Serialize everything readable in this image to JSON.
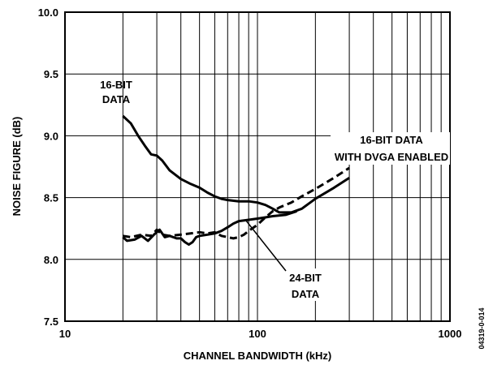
{
  "chart_data": {
    "type": "line",
    "x_scale": "log",
    "xlim": [
      10,
      1000
    ],
    "ylim": [
      7.5,
      10.0
    ],
    "grid": true,
    "xlabel": "CHANNEL BANDWIDTH (kHz)",
    "ylabel": "NOISE FIGURE (dB)",
    "x_ticks": [
      10,
      100,
      1000
    ],
    "x_tick_labels": [
      "10",
      "100",
      "1000"
    ],
    "y_ticks": [
      7.5,
      8.0,
      8.5,
      9.0,
      9.5,
      10.0
    ],
    "y_tick_labels": [
      "7.5",
      "8.0",
      "8.5",
      "9.0",
      "9.5",
      "10.0"
    ],
    "figure_id": "04319-0-014",
    "series": [
      {
        "name": "16-BIT DATA",
        "style": "solid",
        "points": [
          [
            20,
            9.16
          ],
          [
            22,
            9.1
          ],
          [
            24,
            9.0
          ],
          [
            26,
            8.92
          ],
          [
            28,
            8.85
          ],
          [
            30,
            8.84
          ],
          [
            32,
            8.8
          ],
          [
            35,
            8.72
          ],
          [
            40,
            8.65
          ],
          [
            45,
            8.61
          ],
          [
            50,
            8.58
          ],
          [
            55,
            8.54
          ],
          [
            60,
            8.51
          ],
          [
            65,
            8.49
          ],
          [
            70,
            8.48
          ],
          [
            80,
            8.47
          ],
          [
            90,
            8.47
          ],
          [
            100,
            8.46
          ],
          [
            110,
            8.44
          ],
          [
            120,
            8.41
          ],
          [
            130,
            8.38
          ],
          [
            150,
            8.38
          ],
          [
            170,
            8.41
          ],
          [
            200,
            8.49
          ],
          [
            250,
            8.58
          ],
          [
            300,
            8.66
          ]
        ]
      },
      {
        "name": "16-BIT DATA WITH DVGA ENABLED",
        "style": "dashed",
        "points": [
          [
            20,
            8.19
          ],
          [
            22,
            8.18
          ],
          [
            25,
            8.2
          ],
          [
            28,
            8.19
          ],
          [
            30,
            8.24
          ],
          [
            32,
            8.2
          ],
          [
            35,
            8.19
          ],
          [
            40,
            8.2
          ],
          [
            45,
            8.21
          ],
          [
            50,
            8.22
          ],
          [
            55,
            8.21
          ],
          [
            60,
            8.22
          ],
          [
            65,
            8.19
          ],
          [
            70,
            8.18
          ],
          [
            75,
            8.17
          ],
          [
            80,
            8.18
          ],
          [
            85,
            8.2
          ],
          [
            90,
            8.23
          ],
          [
            100,
            8.28
          ],
          [
            110,
            8.34
          ],
          [
            120,
            8.39
          ],
          [
            130,
            8.42
          ],
          [
            150,
            8.46
          ],
          [
            170,
            8.51
          ],
          [
            200,
            8.57
          ],
          [
            250,
            8.66
          ],
          [
            300,
            8.74
          ]
        ]
      },
      {
        "name": "24-BIT DATA",
        "style": "solid",
        "points": [
          [
            20,
            8.18
          ],
          [
            21,
            8.15
          ],
          [
            23,
            8.16
          ],
          [
            25,
            8.19
          ],
          [
            27,
            8.15
          ],
          [
            29,
            8.2
          ],
          [
            31,
            8.24
          ],
          [
            33,
            8.18
          ],
          [
            35,
            8.19
          ],
          [
            38,
            8.17
          ],
          [
            40,
            8.17
          ],
          [
            42,
            8.14
          ],
          [
            44,
            8.12
          ],
          [
            46,
            8.14
          ],
          [
            48,
            8.18
          ],
          [
            50,
            8.19
          ],
          [
            55,
            8.2
          ],
          [
            60,
            8.21
          ],
          [
            65,
            8.23
          ],
          [
            70,
            8.26
          ],
          [
            75,
            8.29
          ],
          [
            80,
            8.31
          ],
          [
            90,
            8.32
          ],
          [
            100,
            8.33
          ],
          [
            110,
            8.34
          ],
          [
            120,
            8.35
          ],
          [
            140,
            8.36
          ],
          [
            160,
            8.39
          ]
        ]
      }
    ],
    "annotations": [
      {
        "lines": [
          "16-BIT",
          "DATA"
        ]
      },
      {
        "lines": [
          "16-BIT DATA",
          "WITH DVGA ENABLED"
        ]
      },
      {
        "lines": [
          "24-BIT",
          "DATA"
        ]
      }
    ]
  }
}
